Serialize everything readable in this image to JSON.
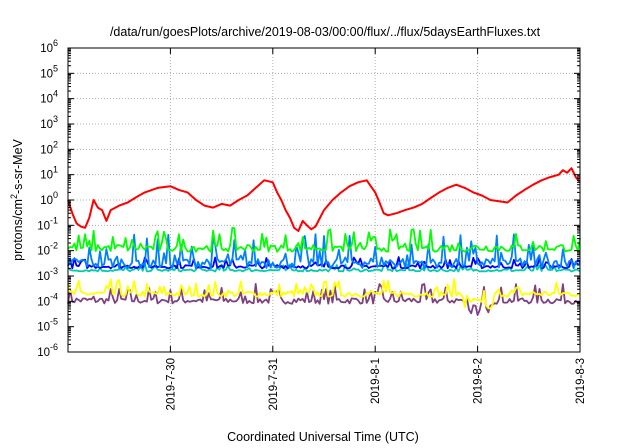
{
  "chart_data": {
    "type": "line",
    "title": "/data/run/goesPlots/archive/2019-08-03/00:00/flux/../flux/5daysEarthFluxes.txt",
    "xlabel": "Coordinated Universal Time (UTC)",
    "ylabel": {
      "base": "protons/cm",
      "sup": "2",
      "rest": "-s-sr-MeV"
    },
    "y_scale": "log",
    "ylim": [
      1e-06,
      1000000.0
    ],
    "y_ticks": [
      {
        "value": 1e-06,
        "base": "10",
        "exp": "-6"
      },
      {
        "value": 1e-05,
        "base": "10",
        "exp": "-5"
      },
      {
        "value": 0.0001,
        "base": "10",
        "exp": "-4"
      },
      {
        "value": 0.001,
        "base": "10",
        "exp": "-3"
      },
      {
        "value": 0.01,
        "base": "10",
        "exp": "-2"
      },
      {
        "value": 0.1,
        "base": "10",
        "exp": "-1"
      },
      {
        "value": 1,
        "base": "10",
        "exp": "0"
      },
      {
        "value": 10.0,
        "base": "10",
        "exp": "1"
      },
      {
        "value": 100.0,
        "base": "10",
        "exp": "2"
      },
      {
        "value": 1000.0,
        "base": "10",
        "exp": "3"
      },
      {
        "value": 10000.0,
        "base": "10",
        "exp": "4"
      },
      {
        "value": 100000.0,
        "base": "10",
        "exp": "5"
      },
      {
        "value": 1000000.0,
        "base": "10",
        "exp": "6"
      }
    ],
    "xlim": [
      "2019-07-29 00:00",
      "2019-08-03 00:00"
    ],
    "x_ticks": [
      "2019-7-30",
      "2019-7-31",
      "2019-8-1",
      "2019-8-2",
      "2019-8-3"
    ],
    "grid": true,
    "series": [
      {
        "color": "#ff0000",
        "points": [
          [
            "2019-07-29 00:00",
            1.0
          ],
          [
            "2019-07-29 01:00",
            0.3
          ],
          [
            "2019-07-29 02:00",
            0.12
          ],
          [
            "2019-07-29 03:00",
            0.09
          ],
          [
            "2019-07-29 04:00",
            0.08
          ],
          [
            "2019-07-29 05:00",
            0.2
          ],
          [
            "2019-07-29 06:00",
            1.0
          ],
          [
            "2019-07-29 07:00",
            0.5
          ],
          [
            "2019-07-29 08:00",
            0.4
          ],
          [
            "2019-07-29 09:00",
            0.15
          ],
          [
            "2019-07-29 10:00",
            0.4
          ],
          [
            "2019-07-29 12:00",
            0.6
          ],
          [
            "2019-07-29 14:00",
            0.8
          ],
          [
            "2019-07-29 16:00",
            1.3
          ],
          [
            "2019-07-29 18:00",
            2.0
          ],
          [
            "2019-07-29 21:00",
            3.0
          ],
          [
            "2019-07-30 00:00",
            3.5
          ],
          [
            "2019-07-30 02:00",
            2.5
          ],
          [
            "2019-07-30 04:00",
            2.0
          ],
          [
            "2019-07-30 06:00",
            1.0
          ],
          [
            "2019-07-30 08:00",
            0.6
          ],
          [
            "2019-07-30 10:00",
            0.5
          ],
          [
            "2019-07-30 12:00",
            0.7
          ],
          [
            "2019-07-30 14:00",
            0.6
          ],
          [
            "2019-07-30 16:00",
            1.0
          ],
          [
            "2019-07-30 18:00",
            1.5
          ],
          [
            "2019-07-30 20:00",
            3.0
          ],
          [
            "2019-07-30 22:00",
            6.0
          ],
          [
            "2019-07-31 00:00",
            5.0
          ],
          [
            "2019-07-31 01:00",
            2.0
          ],
          [
            "2019-07-31 02:00",
            1.0
          ],
          [
            "2019-07-31 03:00",
            0.4
          ],
          [
            "2019-07-31 04:00",
            0.2
          ],
          [
            "2019-07-31 05:00",
            0.08
          ],
          [
            "2019-07-31 06:00",
            0.06
          ],
          [
            "2019-07-31 07:00",
            0.15
          ],
          [
            "2019-07-31 08:00",
            0.1
          ],
          [
            "2019-07-31 09:00",
            0.07
          ],
          [
            "2019-07-31 10:00",
            0.09
          ],
          [
            "2019-07-31 12:00",
            0.4
          ],
          [
            "2019-07-31 14:00",
            1.0
          ],
          [
            "2019-07-31 16:00",
            2.0
          ],
          [
            "2019-07-31 18:00",
            3.5
          ],
          [
            "2019-07-31 20:00",
            5.0
          ],
          [
            "2019-07-31 22:00",
            6.0
          ],
          [
            "2019-08-01 00:00",
            2.0
          ],
          [
            "2019-08-01 01:00",
            0.8
          ],
          [
            "2019-08-01 02:00",
            0.3
          ],
          [
            "2019-08-01 03:00",
            0.25
          ],
          [
            "2019-08-01 05:00",
            0.3
          ],
          [
            "2019-08-01 07:00",
            0.4
          ],
          [
            "2019-08-01 09:00",
            0.5
          ],
          [
            "2019-08-01 11:00",
            0.7
          ],
          [
            "2019-08-01 13:00",
            1.2
          ],
          [
            "2019-08-01 15:00",
            2.0
          ],
          [
            "2019-08-01 17:00",
            3.0
          ],
          [
            "2019-08-01 19:00",
            4.0
          ],
          [
            "2019-08-01 21:00",
            3.0
          ],
          [
            "2019-08-01 23:00",
            2.0
          ],
          [
            "2019-08-02 01:00",
            1.5
          ],
          [
            "2019-08-02 03:00",
            1.0
          ],
          [
            "2019-08-02 05:00",
            0.9
          ],
          [
            "2019-08-02 07:00",
            0.8
          ],
          [
            "2019-08-02 09:00",
            1.5
          ],
          [
            "2019-08-02 11:00",
            2.5
          ],
          [
            "2019-08-02 13:00",
            4.0
          ],
          [
            "2019-08-02 15:00",
            6.0
          ],
          [
            "2019-08-02 17:00",
            8.0
          ],
          [
            "2019-08-02 19:00",
            10.0
          ],
          [
            "2019-08-02 20:00",
            15.0
          ],
          [
            "2019-08-02 21:00",
            12.0
          ],
          [
            "2019-08-02 22:00",
            18.0
          ],
          [
            "2019-08-02 23:00",
            8.0
          ],
          [
            "2019-08-03 00:00",
            5.0
          ]
        ]
      },
      {
        "color": "#00ff00",
        "values_noisy": {
          "low": 0.009,
          "high": 0.08
        }
      },
      {
        "color": "#0080ff",
        "values_noisy": {
          "low": 0.002,
          "high": 0.05
        }
      },
      {
        "color": "#0000ff",
        "values_noisy": {
          "low": 0.002,
          "high": 0.006
        }
      },
      {
        "color": "#00ccaa",
        "values_noisy": {
          "low": 0.0015,
          "high": 0.003
        }
      },
      {
        "color": "#ffff00",
        "values_noisy": {
          "low": 0.00015,
          "high": 0.0008
        }
      },
      {
        "color": "#804080",
        "values_noisy": {
          "low": 8e-05,
          "high": 0.0005
        }
      }
    ]
  }
}
